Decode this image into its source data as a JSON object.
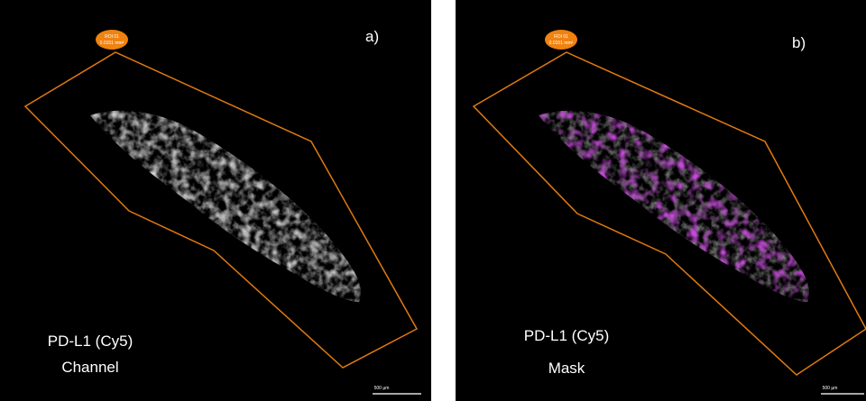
{
  "panels": [
    {
      "label": "a)",
      "caption": [
        "PD-L1 (Cy5)",
        "Channel"
      ],
      "roi": {
        "name": "ROI 01",
        "area": "0.0151 mm²"
      },
      "scale": "500 µm"
    },
    {
      "label": "b)",
      "caption": [
        "PD-L1 (Cy5)",
        "Mask"
      ],
      "roi": {
        "name": "ROI 01",
        "area": "0.0151 mm²"
      },
      "scale": "500 µm"
    }
  ]
}
